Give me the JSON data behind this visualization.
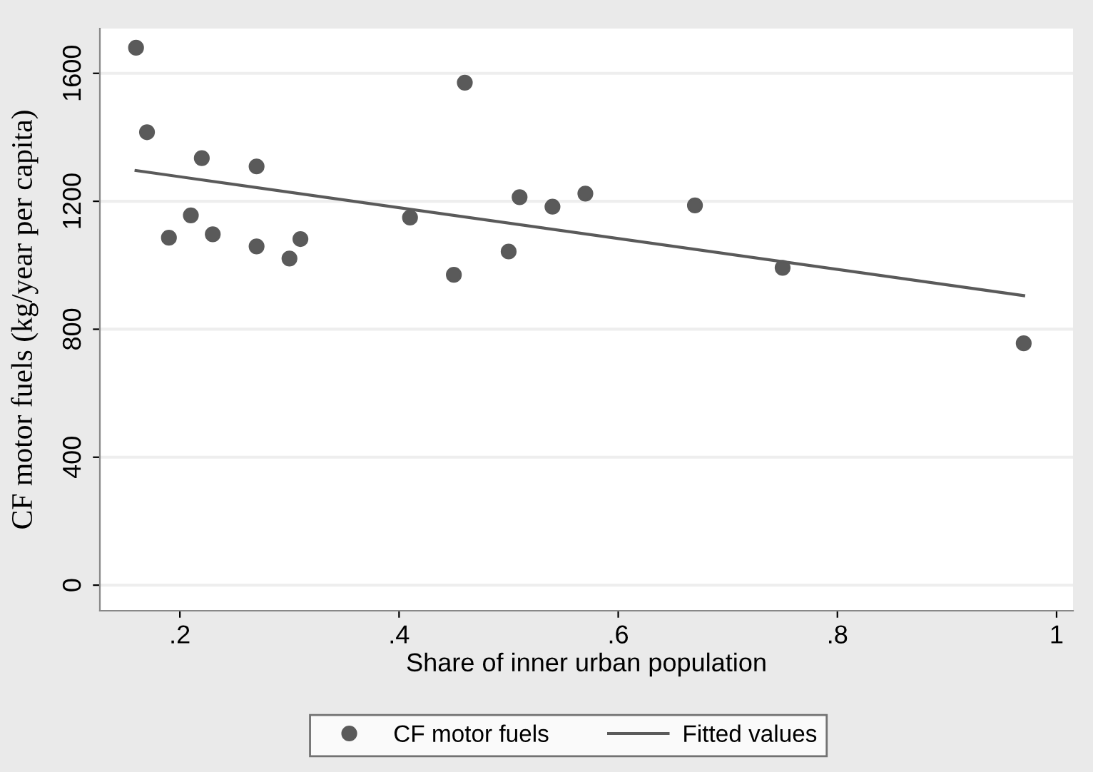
{
  "chart_data": {
    "type": "scatter",
    "xlabel": "Share of inner urban population",
    "ylabel": "CF motor fuels (kg/year per capita)",
    "xlim": [
      0.127,
      1.015
    ],
    "xticks": [
      {
        "value": 0.2,
        "label": ".2"
      },
      {
        "value": 0.4,
        "label": ".4"
      },
      {
        "value": 0.6,
        "label": ".6"
      },
      {
        "value": 0.8,
        "label": ".8"
      },
      1
    ],
    "ylim": [
      -80,
      1740
    ],
    "yticks": [
      0,
      400,
      800,
      1200,
      1600
    ],
    "grid": "y",
    "legend": "bottom",
    "series": [
      {
        "name": "CF motor fuels",
        "marker": "circle",
        "color": "#5a5a5a",
        "x": [
          0.16,
          0.17,
          0.19,
          0.21,
          0.22,
          0.23,
          0.27,
          0.27,
          0.3,
          0.31,
          0.41,
          0.45,
          0.46,
          0.5,
          0.51,
          0.54,
          0.57,
          0.67,
          0.75,
          0.97
        ],
        "values": [
          1680,
          1416,
          1086,
          1156,
          1335,
          1097,
          1309,
          1059,
          1021,
          1082,
          1149,
          970,
          1571,
          1043,
          1213,
          1183,
          1224,
          1187,
          992,
          756
        ]
      },
      {
        "name": "Fitted values",
        "type": "line",
        "marker": "none",
        "color": "#5a5a5a",
        "x": [
          0.16,
          0.97
        ],
        "values": [
          1296,
          905
        ]
      }
    ]
  }
}
